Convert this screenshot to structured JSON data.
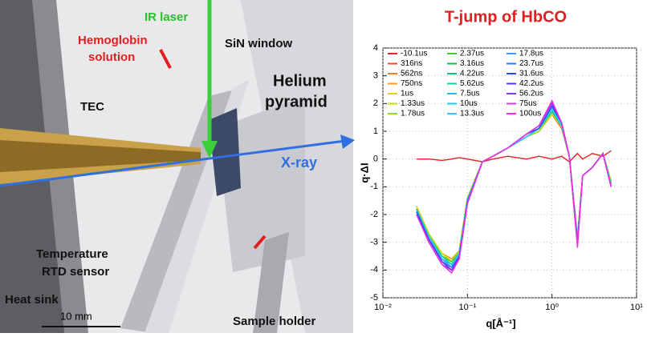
{
  "diagram": {
    "labels": {
      "ir_laser": "IR laser",
      "hemoglobin_1": "Hemoglobin",
      "hemoglobin_2": "solution",
      "sin_window": "SiN window",
      "helium_1": "Helium",
      "helium_2": "pyramid",
      "tec": "TEC",
      "xray": "X-ray",
      "temp_1": "Temperature",
      "temp_2": "RTD sensor",
      "heat_sink": "Heat sink",
      "scale": "10 mm",
      "sample_holder": "Sample holder"
    }
  },
  "chart_data": {
    "type": "line",
    "title": "T-jump of HbCO",
    "x_label": "q[Å⁻¹]",
    "y_label": "q·ΔI",
    "log_x": true,
    "grid": true,
    "legend": "upper left",
    "xlim": [
      0.01,
      10
    ],
    "xticks": [
      {
        "value": 0.01,
        "label": "10⁻²"
      },
      {
        "value": 0.1,
        "label": "10⁻¹"
      },
      {
        "value": 1,
        "label": "10⁰"
      },
      {
        "value": 10,
        "label": "10¹"
      }
    ],
    "ylim": [
      -5,
      4
    ],
    "yticks": [
      -5,
      -4,
      -3,
      -2,
      -1,
      0,
      1,
      2,
      3,
      4
    ],
    "x": [
      0.025,
      0.035,
      0.05,
      0.065,
      0.08,
      0.1,
      0.15,
      0.2,
      0.3,
      0.5,
      0.7,
      1.0,
      1.3,
      1.6,
      2.0,
      2.3,
      3.0,
      4.0,
      5.0
    ],
    "series": [
      {
        "name": "-10.1us",
        "color": "#e8201e",
        "values": [
          0,
          0,
          -0.05,
          0,
          0.05,
          0,
          -0.1,
          0,
          0.1,
          0,
          0.1,
          0,
          0.1,
          -0.1,
          0.2,
          0,
          0.2,
          0.1,
          0.3
        ]
      },
      {
        "name": "316ns",
        "color": "#e8502a",
        "values": [
          -1.7,
          -2.7,
          -3.4,
          -3.6,
          -3.3,
          -1.4,
          -0.1,
          0.1,
          0.4,
          0.8,
          1.0,
          1.6,
          1.1,
          0.1,
          -2.8,
          -0.6,
          -0.3,
          0.2,
          -0.8
        ]
      },
      {
        "name": "562ns",
        "color": "#f07a20",
        "values": [
          -1.7,
          -2.7,
          -3.4,
          -3.6,
          -3.3,
          -1.4,
          -0.1,
          0.1,
          0.4,
          0.8,
          1.0,
          1.6,
          1.1,
          0.1,
          -2.8,
          -0.6,
          -0.3,
          0.2,
          -0.8
        ]
      },
      {
        "name": "750ns",
        "color": "#f5a015",
        "values": [
          -1.7,
          -2.7,
          -3.4,
          -3.6,
          -3.3,
          -1.4,
          -0.1,
          0.1,
          0.4,
          0.8,
          1.0,
          1.6,
          1.2,
          0.1,
          -2.8,
          -0.6,
          -0.3,
          0.2,
          -0.8
        ]
      },
      {
        "name": "1us",
        "color": "#e8d010",
        "values": [
          -1.7,
          -2.7,
          -3.4,
          -3.7,
          -3.3,
          -1.4,
          -0.1,
          0.1,
          0.4,
          0.8,
          1.0,
          1.6,
          1.2,
          0.1,
          -2.8,
          -0.6,
          -0.3,
          0.2,
          -0.8
        ]
      },
      {
        "name": "1.33us",
        "color": "#c4e010",
        "values": [
          -1.8,
          -2.7,
          -3.4,
          -3.7,
          -3.3,
          -1.4,
          -0.1,
          0.1,
          0.4,
          0.8,
          1.0,
          1.7,
          1.2,
          0.1,
          -2.8,
          -0.6,
          -0.3,
          0.2,
          -0.8
        ]
      },
      {
        "name": "1.78us",
        "color": "#90e020",
        "values": [
          -1.8,
          -2.7,
          -3.5,
          -3.7,
          -3.3,
          -1.4,
          -0.1,
          0.1,
          0.4,
          0.8,
          1.0,
          1.7,
          1.2,
          0.1,
          -2.9,
          -0.6,
          -0.3,
          0.2,
          -0.9
        ]
      },
      {
        "name": "2.37us",
        "color": "#40d020",
        "values": [
          -1.8,
          -2.8,
          -3.5,
          -3.7,
          -3.4,
          -1.5,
          -0.1,
          0.1,
          0.4,
          0.8,
          1.1,
          1.7,
          1.2,
          0.1,
          -2.9,
          -0.6,
          -0.3,
          0.2,
          -0.9
        ]
      },
      {
        "name": "3.16us",
        "color": "#10c040",
        "values": [
          -1.8,
          -2.8,
          -3.5,
          -3.8,
          -3.4,
          -1.5,
          -0.1,
          0.1,
          0.4,
          0.8,
          1.1,
          1.7,
          1.2,
          0.1,
          -2.9,
          -0.6,
          -0.3,
          0.2,
          -0.9
        ]
      },
      {
        "name": "4.22us",
        "color": "#10c880",
        "values": [
          -1.8,
          -2.8,
          -3.5,
          -3.8,
          -3.4,
          -1.5,
          -0.1,
          0.1,
          0.4,
          0.8,
          1.1,
          1.7,
          1.2,
          0.1,
          -2.9,
          -0.6,
          -0.3,
          0.2,
          -0.9
        ]
      },
      {
        "name": "5.62us",
        "color": "#10d0b0",
        "values": [
          -1.8,
          -2.8,
          -3.5,
          -3.8,
          -3.4,
          -1.5,
          -0.1,
          0.1,
          0.4,
          0.8,
          1.1,
          1.8,
          1.2,
          0.1,
          -2.9,
          -0.6,
          -0.3,
          0.2,
          -0.9
        ]
      },
      {
        "name": "7.5us",
        "color": "#10c8d8",
        "values": [
          -1.8,
          -2.8,
          -3.6,
          -3.8,
          -3.4,
          -1.5,
          -0.1,
          0.1,
          0.4,
          0.8,
          1.1,
          1.8,
          1.2,
          0.1,
          -2.9,
          -0.6,
          -0.3,
          0.2,
          -0.9
        ]
      },
      {
        "name": "10us",
        "color": "#10d8f0",
        "values": [
          -1.9,
          -2.8,
          -3.6,
          -3.9,
          -3.4,
          -1.5,
          -0.1,
          0.1,
          0.4,
          0.8,
          1.1,
          1.8,
          1.2,
          0.1,
          -3.0,
          -0.6,
          -0.3,
          0.2,
          -0.9
        ]
      },
      {
        "name": "13.3us",
        "color": "#40c0ff",
        "values": [
          -1.9,
          -2.8,
          -3.6,
          -3.9,
          -3.4,
          -1.5,
          -0.1,
          0.1,
          0.4,
          0.8,
          1.1,
          1.8,
          1.3,
          0.1,
          -3.0,
          -0.6,
          -0.3,
          0.2,
          -1.0
        ]
      },
      {
        "name": "17.8us",
        "color": "#3aa0ff",
        "values": [
          -1.9,
          -2.9,
          -3.6,
          -3.9,
          -3.5,
          -1.5,
          -0.1,
          0.1,
          0.4,
          0.9,
          1.1,
          1.9,
          1.3,
          0.1,
          -3.0,
          -0.6,
          -0.3,
          0.2,
          -1.0
        ]
      },
      {
        "name": "23.7us",
        "color": "#3078ff",
        "values": [
          -1.9,
          -2.9,
          -3.7,
          -3.9,
          -3.5,
          -1.5,
          -0.1,
          0.1,
          0.4,
          0.9,
          1.1,
          1.9,
          1.3,
          0.1,
          -3.0,
          -0.6,
          -0.3,
          0.2,
          -1.0
        ]
      },
      {
        "name": "31.6us",
        "color": "#2048ff",
        "values": [
          -1.9,
          -2.9,
          -3.7,
          -4.0,
          -3.5,
          -1.6,
          -0.1,
          0.1,
          0.4,
          0.9,
          1.1,
          1.9,
          1.3,
          0.1,
          -3.1,
          -0.6,
          -0.3,
          0.2,
          -1.0
        ]
      },
      {
        "name": "42.2us",
        "color": "#5a30ff",
        "values": [
          -2.0,
          -2.9,
          -3.7,
          -4.0,
          -3.5,
          -1.6,
          -0.1,
          0.1,
          0.4,
          0.9,
          1.2,
          2.0,
          1.3,
          0.1,
          -3.1,
          -0.6,
          -0.3,
          0.2,
          -1.0
        ]
      },
      {
        "name": "56.2us",
        "color": "#8a30f0",
        "values": [
          -2.0,
          -3.0,
          -3.8,
          -4.0,
          -3.6,
          -1.6,
          -0.1,
          0.1,
          0.4,
          0.9,
          1.2,
          2.0,
          1.3,
          0.1,
          -3.1,
          -0.6,
          -0.3,
          0.2,
          -1.0
        ]
      },
      {
        "name": "75us",
        "color": "#c040f0",
        "values": [
          -2.0,
          -3.0,
          -3.8,
          -4.1,
          -3.6,
          -1.6,
          -0.1,
          0.1,
          0.4,
          0.9,
          1.2,
          2.1,
          1.3,
          0.1,
          -3.1,
          -0.6,
          -0.3,
          0.2,
          -1.0
        ]
      },
      {
        "name": "100us",
        "color": "#f030e0",
        "values": [
          -2.0,
          -3.0,
          -3.8,
          -4.1,
          -3.6,
          -1.6,
          -0.1,
          0.1,
          0.4,
          0.9,
          1.2,
          2.1,
          1.3,
          0.1,
          -3.2,
          -0.6,
          -0.3,
          0.2,
          -1.0
        ]
      }
    ]
  }
}
